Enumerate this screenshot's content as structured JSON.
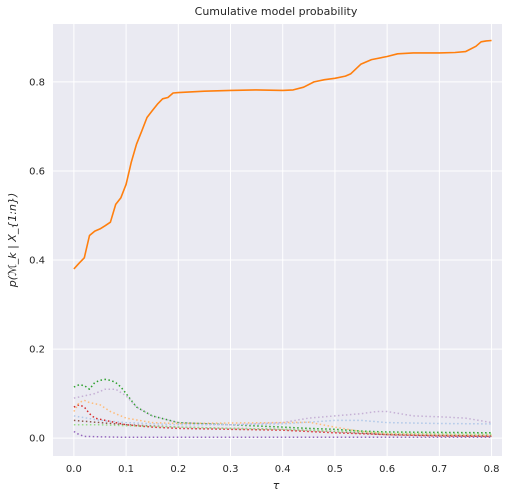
{
  "chart_data": {
    "type": "line",
    "title": "Cumulative model probability",
    "xlabel": "τ",
    "ylabel": "p(ℳ_k | X_{1:n})",
    "xlim": [
      -0.04,
      0.82
    ],
    "ylim": [
      -0.04,
      0.93
    ],
    "xticks": [
      0.0,
      0.1,
      0.2,
      0.3,
      0.4,
      0.5,
      0.6,
      0.7,
      0.8
    ],
    "xtick_labels": [
      "0.0",
      "0.1",
      "0.2",
      "0.3",
      "0.4",
      "0.5",
      "0.6",
      "0.7",
      "0.8"
    ],
    "yticks": [
      0.0,
      0.2,
      0.4,
      0.6,
      0.8
    ],
    "ytick_labels": [
      "0.0",
      "0.2",
      "0.4",
      "0.6",
      "0.8"
    ],
    "grid": true,
    "background": "#eaeaf2",
    "series": [
      {
        "color": "#ff7f0e",
        "style": "solid",
        "x": [
          0.0,
          0.01,
          0.02,
          0.03,
          0.04,
          0.05,
          0.06,
          0.07,
          0.08,
          0.09,
          0.1,
          0.11,
          0.12,
          0.13,
          0.14,
          0.15,
          0.16,
          0.17,
          0.18,
          0.19,
          0.2,
          0.25,
          0.3,
          0.35,
          0.4,
          0.42,
          0.44,
          0.46,
          0.48,
          0.5,
          0.52,
          0.53,
          0.55,
          0.57,
          0.6,
          0.62,
          0.65,
          0.7,
          0.73,
          0.75,
          0.77,
          0.78,
          0.79,
          0.8
        ],
        "y": [
          0.38,
          0.393,
          0.405,
          0.455,
          0.465,
          0.47,
          0.477,
          0.485,
          0.525,
          0.54,
          0.57,
          0.62,
          0.66,
          0.69,
          0.72,
          0.735,
          0.75,
          0.762,
          0.765,
          0.775,
          0.776,
          0.779,
          0.781,
          0.782,
          0.781,
          0.782,
          0.788,
          0.8,
          0.805,
          0.808,
          0.813,
          0.818,
          0.84,
          0.85,
          0.857,
          0.863,
          0.865,
          0.865,
          0.866,
          0.868,
          0.88,
          0.89,
          0.892,
          0.893
        ]
      },
      {
        "color": "#2ca02c",
        "style": "dotted",
        "x": [
          0.0,
          0.01,
          0.02,
          0.03,
          0.04,
          0.05,
          0.06,
          0.07,
          0.08,
          0.09,
          0.1,
          0.12,
          0.15,
          0.2,
          0.3,
          0.4,
          0.45,
          0.5,
          0.55,
          0.6,
          0.7,
          0.8
        ],
        "y": [
          0.115,
          0.12,
          0.118,
          0.11,
          0.125,
          0.13,
          0.132,
          0.13,
          0.125,
          0.115,
          0.1,
          0.07,
          0.05,
          0.035,
          0.03,
          0.025,
          0.022,
          0.02,
          0.016,
          0.014,
          0.013,
          0.012
        ]
      },
      {
        "color": "#d62728",
        "style": "dotted",
        "x": [
          0.0,
          0.01,
          0.02,
          0.03,
          0.04,
          0.06,
          0.08,
          0.1,
          0.15,
          0.2,
          0.3,
          0.4,
          0.5,
          0.6,
          0.7,
          0.8
        ],
        "y": [
          0.07,
          0.075,
          0.07,
          0.055,
          0.045,
          0.04,
          0.035,
          0.03,
          0.025,
          0.022,
          0.02,
          0.018,
          0.012,
          0.008,
          0.005,
          0.004
        ]
      },
      {
        "color": "#ffbb78",
        "style": "dotted",
        "x": [
          0.0,
          0.01,
          0.02,
          0.03,
          0.05,
          0.07,
          0.1,
          0.15,
          0.2,
          0.3,
          0.4,
          0.45,
          0.5,
          0.55,
          0.6,
          0.7,
          0.8
        ],
        "y": [
          0.06,
          0.08,
          0.085,
          0.08,
          0.075,
          0.06,
          0.045,
          0.035,
          0.033,
          0.034,
          0.035,
          0.036,
          0.025,
          0.015,
          0.01,
          0.008,
          0.007
        ]
      },
      {
        "color": "#c5b0d5",
        "style": "dotted",
        "x": [
          0.0,
          0.02,
          0.04,
          0.06,
          0.08,
          0.1,
          0.12,
          0.15,
          0.2,
          0.3,
          0.4,
          0.45,
          0.5,
          0.55,
          0.58,
          0.6,
          0.65,
          0.7,
          0.75,
          0.8
        ],
        "y": [
          0.09,
          0.095,
          0.1,
          0.11,
          0.11,
          0.095,
          0.07,
          0.05,
          0.035,
          0.03,
          0.035,
          0.045,
          0.05,
          0.055,
          0.06,
          0.06,
          0.05,
          0.048,
          0.045,
          0.035
        ]
      },
      {
        "color": "#aec7e8",
        "style": "dotted",
        "x": [
          0.0,
          0.05,
          0.1,
          0.2,
          0.3,
          0.4,
          0.5,
          0.55,
          0.6,
          0.7,
          0.8
        ],
        "y": [
          0.05,
          0.04,
          0.035,
          0.03,
          0.03,
          0.032,
          0.04,
          0.04,
          0.035,
          0.033,
          0.032
        ]
      },
      {
        "color": "#9467bd",
        "style": "dotted",
        "x": [
          0.0,
          0.01,
          0.02,
          0.05,
          0.1,
          0.2,
          0.3,
          0.4,
          0.5,
          0.6,
          0.7,
          0.8
        ],
        "y": [
          0.015,
          0.008,
          0.004,
          0.003,
          0.002,
          0.002,
          0.002,
          0.002,
          0.002,
          0.002,
          0.002,
          0.002
        ]
      },
      {
        "color": "#8c564b",
        "style": "dotted",
        "x": [
          0.0,
          0.05,
          0.1,
          0.2,
          0.3,
          0.4,
          0.5,
          0.6,
          0.7,
          0.8
        ],
        "y": [
          0.04,
          0.035,
          0.03,
          0.025,
          0.022,
          0.02,
          0.015,
          0.008,
          0.006,
          0.005
        ]
      },
      {
        "color": "#98df8a",
        "style": "dotted",
        "x": [
          0.0,
          0.05,
          0.1,
          0.2,
          0.3,
          0.4,
          0.5,
          0.6,
          0.7,
          0.8
        ],
        "y": [
          0.03,
          0.03,
          0.028,
          0.025,
          0.022,
          0.02,
          0.016,
          0.012,
          0.01,
          0.009
        ]
      }
    ]
  }
}
